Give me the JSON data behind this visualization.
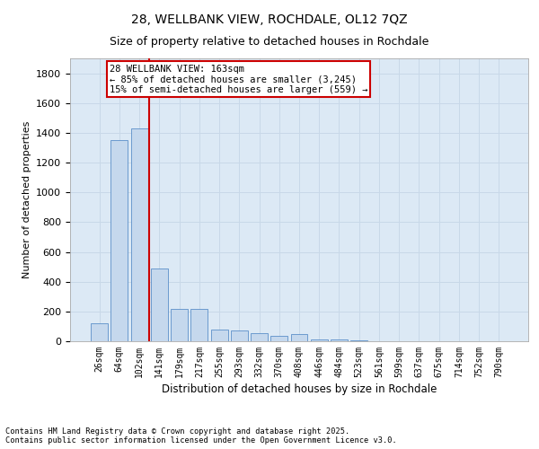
{
  "title_line1": "28, WELLBANK VIEW, ROCHDALE, OL12 7QZ",
  "title_line2": "Size of property relative to detached houses in Rochdale",
  "xlabel": "Distribution of detached houses by size in Rochdale",
  "ylabel": "Number of detached properties",
  "categories": [
    "26sqm",
    "64sqm",
    "102sqm",
    "141sqm",
    "179sqm",
    "217sqm",
    "255sqm",
    "293sqm",
    "332sqm",
    "370sqm",
    "408sqm",
    "446sqm",
    "484sqm",
    "523sqm",
    "561sqm",
    "599sqm",
    "637sqm",
    "675sqm",
    "714sqm",
    "752sqm",
    "790sqm"
  ],
  "values": [
    120,
    1350,
    1430,
    490,
    220,
    215,
    80,
    75,
    55,
    35,
    50,
    15,
    10,
    5,
    3,
    2,
    1,
    1,
    1,
    1,
    1
  ],
  "bar_color": "#c5d8ed",
  "bar_edge_color": "#5b8fc9",
  "grid_color": "#c8d8e8",
  "background_color": "#dce9f5",
  "annotation_text": "28 WELLBANK VIEW: 163sqm\n← 85% of detached houses are smaller (3,245)\n15% of semi-detached houses are larger (559) →",
  "annotation_box_color": "#ffffff",
  "annotation_box_edge_color": "#cc0000",
  "vline_color": "#cc0000",
  "ylim": [
    0,
    1900
  ],
  "yticks": [
    0,
    200,
    400,
    600,
    800,
    1000,
    1200,
    1400,
    1600,
    1800
  ],
  "footer_line1": "Contains HM Land Registry data © Crown copyright and database right 2025.",
  "footer_line2": "Contains public sector information licensed under the Open Government Licence v3.0."
}
